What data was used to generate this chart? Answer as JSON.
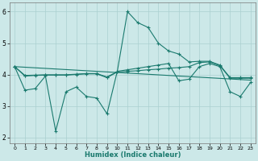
{
  "xlabel": "Humidex (Indice chaleur)",
  "bg_color": "#cce8e8",
  "grid_color": "#aad0d0",
  "line_color": "#1a7a6e",
  "xlim": [
    -0.5,
    23.5
  ],
  "ylim": [
    1.8,
    6.3
  ],
  "yticks": [
    2,
    3,
    4,
    5,
    6
  ],
  "xticks": [
    0,
    1,
    2,
    3,
    4,
    5,
    6,
    7,
    8,
    9,
    10,
    11,
    12,
    13,
    14,
    15,
    16,
    17,
    18,
    19,
    20,
    21,
    22,
    23
  ],
  "line1_x": [
    0,
    1,
    2,
    3,
    4,
    5,
    6,
    7,
    8,
    9,
    10,
    11,
    12,
    13,
    14,
    15,
    16,
    17,
    18,
    19,
    20,
    21,
    22,
    23
  ],
  "line1_y": [
    4.25,
    3.5,
    3.55,
    3.95,
    2.2,
    3.45,
    3.6,
    3.3,
    3.25,
    2.75,
    4.1,
    4.15,
    4.2,
    4.25,
    4.3,
    4.35,
    3.8,
    3.85,
    4.25,
    4.35,
    4.25,
    3.45,
    3.3,
    3.75
  ],
  "line2_x": [
    0,
    1,
    2,
    3,
    4,
    5,
    6,
    7,
    8,
    9,
    10,
    11,
    12,
    13,
    14,
    15,
    16,
    17,
    18,
    19,
    20,
    21,
    22,
    23
  ],
  "line2_y": [
    4.25,
    3.95,
    3.97,
    3.98,
    3.98,
    3.98,
    4.0,
    4.02,
    4.02,
    3.9,
    4.08,
    4.1,
    4.12,
    4.15,
    4.17,
    4.2,
    4.22,
    4.25,
    4.38,
    4.4,
    4.28,
    3.88,
    3.88,
    3.88
  ],
  "line3_x": [
    0,
    1,
    2,
    3,
    4,
    5,
    6,
    7,
    8,
    9,
    10,
    11,
    12,
    13,
    14,
    15,
    16,
    17,
    18,
    19,
    20,
    21,
    22,
    23
  ],
  "line3_y": [
    4.25,
    3.97,
    3.98,
    3.99,
    3.99,
    3.99,
    4.01,
    4.03,
    4.03,
    3.92,
    4.09,
    6.0,
    5.65,
    5.5,
    5.0,
    4.75,
    4.65,
    4.4,
    4.42,
    4.42,
    4.3,
    3.9,
    3.9,
    3.9
  ],
  "line4_x": [
    0,
    23
  ],
  "line4_y": [
    4.25,
    3.82
  ]
}
